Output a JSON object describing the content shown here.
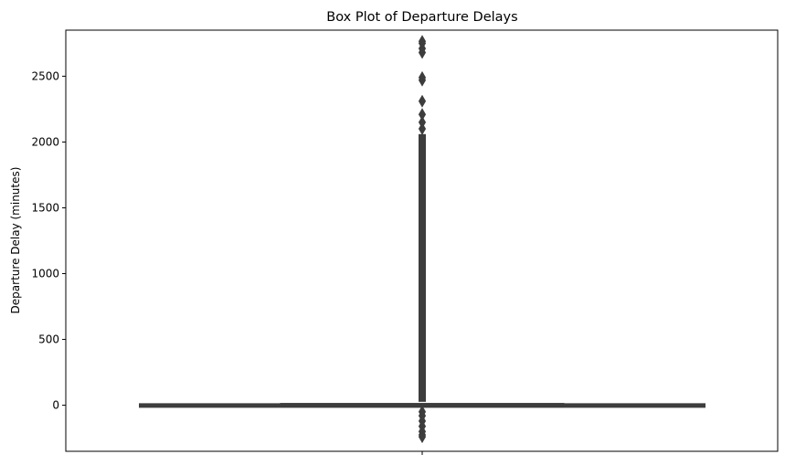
{
  "chart_data": {
    "type": "box",
    "title": "Box Plot of Departure Delays",
    "xlabel": "",
    "ylabel": "Departure Delay (minutes)",
    "ylim": [
      -350,
      2850
    ],
    "yticks": [
      0,
      500,
      1000,
      1500,
      2000,
      2500
    ],
    "ytick_labels": [
      "0",
      "500",
      "1000",
      "1500",
      "2000",
      "2500"
    ],
    "grid": false,
    "series": [
      {
        "whisker_low": -10,
        "q1": -5,
        "median": -2,
        "q3": 7,
        "whisker_high": 25,
        "outliers_high_range": [
          26,
          2060
        ],
        "outliers_high_extreme": [
          2100,
          2150,
          2210,
          2310,
          2470,
          2490,
          2680,
          2710,
          2750,
          2765
        ],
        "outliers_low": [
          -50,
          -80,
          -120,
          -160,
          -200,
          -225,
          -240
        ]
      }
    ],
    "colors": {
      "box": "#3d3d3d",
      "outliers": "#3d3d3d"
    }
  }
}
